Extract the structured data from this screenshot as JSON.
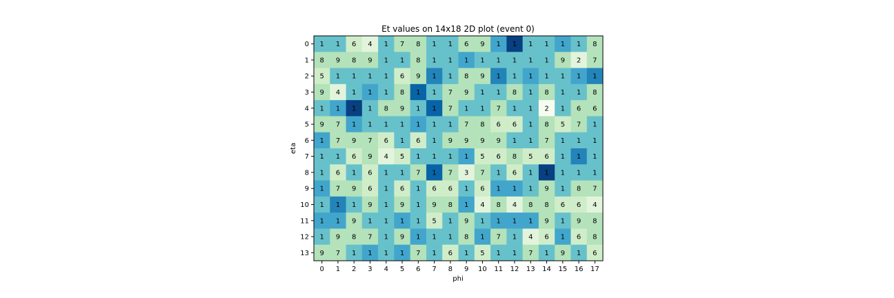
{
  "chart_data": {
    "type": "heatmap",
    "title": "Et values on 14x18 2D plot (event 0)",
    "xlabel": "phi",
    "ylabel": "eta",
    "x_ticks": [
      "0",
      "1",
      "2",
      "3",
      "4",
      "5",
      "6",
      "7",
      "8",
      "9",
      "10",
      "11",
      "12",
      "13",
      "14",
      "15",
      "16",
      "17"
    ],
    "y_ticks": [
      "0",
      "1",
      "2",
      "3",
      "4",
      "5",
      "6",
      "7",
      "8",
      "9",
      "10",
      "11",
      "12",
      "13"
    ],
    "colormap": "GnBu",
    "values": [
      [
        1,
        1,
        6,
        4,
        1,
        7,
        8,
        1,
        1,
        6,
        9,
        1,
        1,
        1,
        1,
        1,
        1,
        8
      ],
      [
        8,
        9,
        8,
        9,
        1,
        1,
        8,
        1,
        1,
        1,
        1,
        1,
        1,
        1,
        1,
        9,
        2,
        7
      ],
      [
        5,
        1,
        1,
        1,
        1,
        6,
        9,
        1,
        1,
        8,
        9,
        1,
        1,
        1,
        1,
        1,
        1,
        1
      ],
      [
        9,
        4,
        1,
        1,
        1,
        8,
        1,
        1,
        7,
        9,
        1,
        1,
        8,
        1,
        8,
        1,
        1,
        8
      ],
      [
        1,
        1,
        1,
        1,
        8,
        9,
        1,
        1,
        7,
        1,
        1,
        7,
        1,
        1,
        2,
        1,
        6,
        6
      ],
      [
        9,
        7,
        1,
        1,
        1,
        1,
        1,
        1,
        1,
        7,
        8,
        6,
        6,
        1,
        8,
        5,
        7,
        1
      ],
      [
        1,
        7,
        9,
        7,
        6,
        1,
        6,
        1,
        9,
        9,
        9,
        9,
        1,
        1,
        7,
        1,
        1,
        1
      ],
      [
        1,
        1,
        6,
        9,
        4,
        5,
        1,
        1,
        1,
        1,
        5,
        6,
        8,
        5,
        6,
        1,
        1,
        1
      ],
      [
        1,
        6,
        1,
        6,
        1,
        1,
        7,
        1,
        7,
        3,
        7,
        1,
        6,
        1,
        1,
        1,
        1,
        1
      ],
      [
        1,
        7,
        9,
        6,
        1,
        6,
        1,
        6,
        6,
        1,
        6,
        1,
        1,
        1,
        9,
        1,
        8,
        7
      ],
      [
        1,
        1,
        1,
        9,
        1,
        9,
        1,
        9,
        8,
        1,
        4,
        8,
        4,
        8,
        8,
        6,
        6,
        4
      ],
      [
        1,
        1,
        9,
        1,
        1,
        1,
        1,
        5,
        1,
        9,
        1,
        1,
        1,
        1,
        9,
        1,
        9,
        8
      ],
      [
        1,
        9,
        8,
        7,
        1,
        9,
        1,
        1,
        1,
        8,
        1,
        7,
        1,
        4,
        6,
        1,
        6,
        8
      ],
      [
        9,
        7,
        1,
        1,
        1,
        1,
        7,
        1,
        6,
        1,
        5,
        1,
        1,
        7,
        1,
        9,
        1,
        6
      ]
    ],
    "display_intensity": [
      [
        5,
        5,
        2,
        1,
        5,
        3,
        3,
        5,
        5,
        3,
        3,
        6,
        9,
        5,
        5,
        6,
        5,
        3
      ],
      [
        3,
        3,
        3,
        3,
        5,
        5,
        3,
        5,
        5,
        6,
        5,
        5,
        5,
        5,
        5,
        3,
        1,
        3
      ],
      [
        2,
        5,
        5,
        5,
        5,
        2,
        3,
        7,
        5,
        3,
        3,
        7,
        5,
        6,
        5,
        5,
        6,
        7
      ],
      [
        3,
        1,
        5,
        6,
        5,
        3,
        8,
        5,
        3,
        3,
        5,
        5,
        3,
        5,
        3,
        5,
        5,
        3
      ],
      [
        5,
        6,
        9,
        5,
        3,
        3,
        5,
        8,
        3,
        5,
        5,
        3,
        5,
        5,
        0,
        5,
        3,
        3
      ],
      [
        3,
        3,
        6,
        5,
        5,
        5,
        6,
        5,
        5,
        3,
        3,
        2,
        2,
        5,
        3,
        2,
        3,
        5
      ],
      [
        6,
        3,
        3,
        3,
        2,
        5,
        2,
        5,
        3,
        3,
        3,
        3,
        5,
        5,
        3,
        5,
        5,
        5
      ],
      [
        5,
        5,
        2,
        3,
        1,
        2,
        5,
        5,
        5,
        6,
        2,
        2,
        3,
        2,
        2,
        5,
        7,
        5
      ],
      [
        5,
        2,
        5,
        2,
        5,
        5,
        3,
        8,
        3,
        1,
        3,
        5,
        2,
        5,
        9,
        5,
        5,
        5
      ],
      [
        6,
        3,
        3,
        2,
        5,
        2,
        5,
        2,
        2,
        5,
        2,
        6,
        6,
        5,
        3,
        5,
        3,
        3
      ],
      [
        5,
        7,
        5,
        3,
        5,
        3,
        5,
        3,
        3,
        6,
        1,
        3,
        1,
        3,
        3,
        2,
        2,
        1
      ],
      [
        6,
        6,
        3,
        5,
        5,
        6,
        5,
        2,
        5,
        3,
        5,
        6,
        6,
        6,
        3,
        5,
        3,
        3
      ],
      [
        5,
        3,
        3,
        3,
        5,
        3,
        6,
        5,
        5,
        3,
        6,
        3,
        5,
        1,
        2,
        6,
        2,
        3
      ],
      [
        3,
        3,
        5,
        6,
        5,
        6,
        3,
        5,
        2,
        5,
        2,
        5,
        5,
        3,
        5,
        3,
        5,
        2
      ]
    ]
  }
}
